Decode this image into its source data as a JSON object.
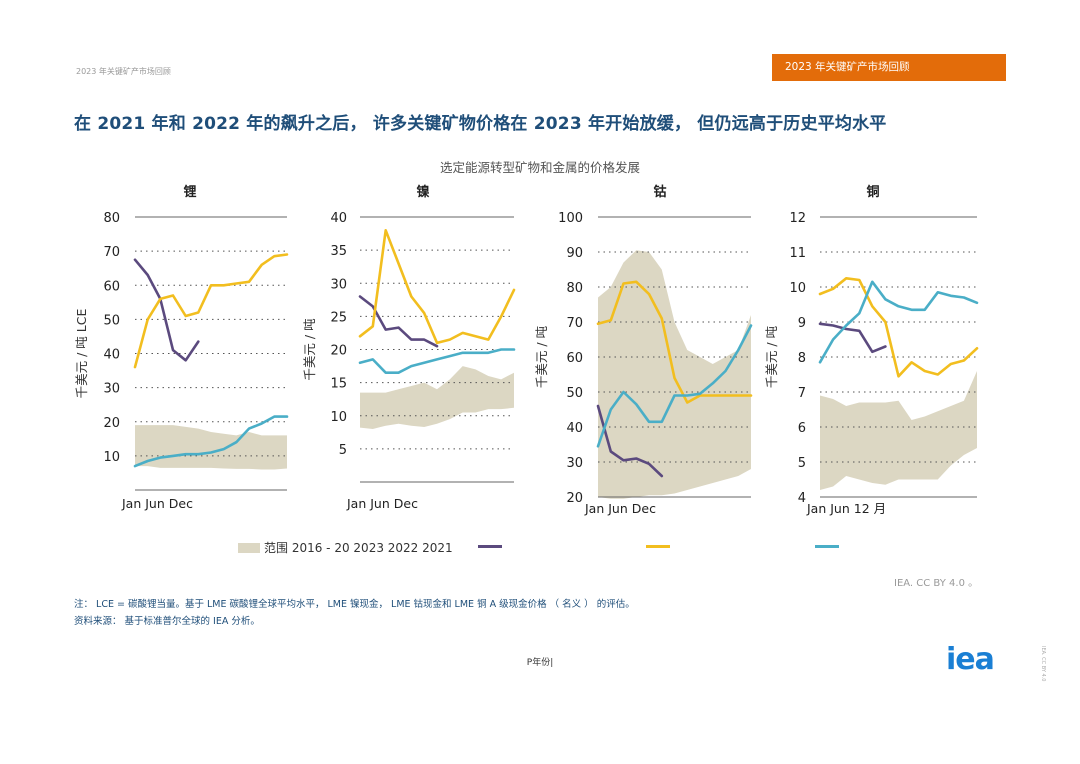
{
  "header": {
    "left_title": "2023 年关键矿产市场回顾",
    "badge": "2023 年关键矿产市场回顾"
  },
  "headline": "在 2021 年和 2022 年的飙升之后， 许多关键矿物价格在 2023 年开始放缓， 但仍远高于历史平均水平",
  "subtitle": "选定能源转型矿物和金属的价格发展",
  "colors": {
    "range": "#dcd7c3",
    "s2023": "#5b4a7e",
    "s2022": "#f2be1f",
    "s2021": "#4aaec7",
    "badge": "#e36c0a",
    "headline": "#1f4e79",
    "logo": "#1a7fd4"
  },
  "chart_data": [
    {
      "type": "line",
      "title": "锂",
      "ylabel": "千美元 / 吨 LCE",
      "ylim": [
        0,
        80
      ],
      "yticks": [
        10,
        20,
        30,
        40,
        50,
        60,
        70,
        80
      ],
      "xlabel": "Jan Jun      Dec",
      "months": 12,
      "range_band": {
        "name": "范围 2016 - 20",
        "upper": [
          19,
          19,
          19,
          19,
          18.5,
          18,
          17,
          16.5,
          16,
          17,
          16,
          16,
          16
        ],
        "lower": [
          7,
          7,
          6.5,
          6.5,
          6.5,
          6.5,
          6.5,
          6.3,
          6.2,
          6.2,
          6,
          6,
          6.3
        ]
      },
      "series": [
        {
          "name": "2023",
          "x": [
            0,
            1,
            2,
            3,
            4,
            5
          ],
          "values": [
            67.5,
            63,
            56,
            41,
            38,
            43.5
          ]
        },
        {
          "name": "2022",
          "x": [
            0,
            1,
            2,
            3,
            4,
            5,
            6,
            7,
            8,
            9,
            10,
            11,
            12
          ],
          "values": [
            36,
            50,
            56,
            57,
            51,
            52,
            60,
            60,
            60.5,
            61,
            66,
            68.5,
            69
          ]
        },
        {
          "name": "2021",
          "x": [
            0,
            1,
            2,
            3,
            4,
            5,
            6,
            7,
            8,
            9,
            10,
            11,
            12
          ],
          "values": [
            7,
            8.5,
            9.5,
            10,
            10.5,
            10.5,
            11,
            12,
            14,
            18,
            19.5,
            21.5,
            21.5
          ]
        }
      ]
    },
    {
      "type": "line",
      "title": "镍",
      "ylabel": "千美元 / 吨",
      "ylim": [
        0,
        40
      ],
      "yticks": [
        5,
        10,
        15,
        20,
        25,
        30,
        35,
        40
      ],
      "xlabel": "Jan Jun      Dec",
      "months": 12,
      "range_band": {
        "name": "范围 2016 - 20",
        "upper": [
          13.5,
          13.5,
          13.5,
          14,
          14.5,
          15,
          14,
          15.5,
          17.5,
          17,
          16,
          15.5,
          16.5
        ],
        "lower": [
          8.2,
          8,
          8.5,
          8.8,
          8.5,
          8.3,
          8.8,
          9.5,
          10.5,
          10.5,
          11,
          11,
          11.2
        ]
      },
      "series": [
        {
          "name": "2023",
          "x": [
            0,
            1,
            2,
            3,
            4,
            5,
            6
          ],
          "values": [
            28,
            26.5,
            23,
            23.3,
            21.5,
            21.5,
            20.5
          ]
        },
        {
          "name": "2022",
          "x": [
            0,
            1,
            2,
            3,
            4,
            5,
            6,
            7,
            8,
            9,
            10,
            11,
            12
          ],
          "values": [
            22,
            23.5,
            38,
            33,
            28,
            25.5,
            21,
            21.5,
            22.5,
            22,
            21.5,
            25,
            29
          ]
        },
        {
          "name": "2021",
          "x": [
            0,
            1,
            2,
            3,
            4,
            5,
            6,
            7,
            8,
            9,
            10,
            11,
            12
          ],
          "values": [
            18,
            18.5,
            16.5,
            16.5,
            17.5,
            18,
            18.5,
            19,
            19.5,
            19.5,
            19.5,
            20,
            20
          ]
        }
      ]
    },
    {
      "type": "line",
      "title": "钴",
      "ylabel": "千美元 / 吨",
      "ylim": [
        20,
        100
      ],
      "yticks": [
        20,
        30,
        40,
        50,
        60,
        70,
        80,
        90,
        100
      ],
      "xlabel": "Jan Jun      Dec",
      "months": 12,
      "range_band": {
        "name": "范围 2016 - 20",
        "upper": [
          77,
          80,
          87,
          90.5,
          90,
          85,
          70,
          62,
          60,
          58,
          60,
          62,
          72
        ],
        "lower": [
          20,
          19.5,
          19.5,
          20,
          20.5,
          20.5,
          21,
          22,
          23,
          24,
          25,
          26,
          28
        ]
      },
      "series": [
        {
          "name": "2023",
          "x": [
            0,
            1,
            2,
            3,
            4,
            5
          ],
          "values": [
            46,
            33,
            30.5,
            31,
            29.5,
            26
          ]
        },
        {
          "name": "2022",
          "x": [
            0,
            1,
            2,
            3,
            4,
            5,
            6,
            7,
            8,
            9,
            10,
            11,
            12
          ],
          "values": [
            69.5,
            70.5,
            81,
            81.5,
            78,
            71,
            54,
            47,
            49,
            49,
            49,
            49,
            49
          ]
        },
        {
          "name": "2021",
          "x": [
            0,
            1,
            2,
            3,
            4,
            5,
            6,
            7,
            8,
            9,
            10,
            11,
            12
          ],
          "values": [
            34.5,
            45,
            50,
            46.5,
            41.5,
            41.5,
            49,
            49,
            49.5,
            52.5,
            56,
            62,
            69
          ]
        }
      ]
    },
    {
      "type": "line",
      "title": "铜",
      "ylabel": "千美元 / 吨",
      "ylim": [
        4,
        12
      ],
      "yticks": [
        4,
        5,
        6,
        7,
        8,
        9,
        10,
        11,
        12
      ],
      "xlabel": "Jan Jun 12 月",
      "months": 12,
      "range_band": {
        "name": "范围 2016 - 20",
        "upper": [
          6.9,
          6.8,
          6.6,
          6.7,
          6.7,
          6.7,
          6.75,
          6.2,
          6.3,
          6.45,
          6.6,
          6.75,
          7.6
        ],
        "lower": [
          4.2,
          4.3,
          4.6,
          4.5,
          4.4,
          4.35,
          4.5,
          4.5,
          4.5,
          4.5,
          4.9,
          5.2,
          5.4
        ]
      },
      "series": [
        {
          "name": "2023",
          "x": [
            0,
            1,
            2,
            3,
            4,
            5
          ],
          "values": [
            8.95,
            8.9,
            8.8,
            8.75,
            8.15,
            8.3
          ]
        },
        {
          "name": "2022",
          "x": [
            0,
            1,
            2,
            3,
            4,
            5,
            6,
            7,
            8,
            9,
            10,
            11,
            12
          ],
          "values": [
            9.8,
            9.95,
            10.25,
            10.2,
            9.45,
            9.0,
            7.45,
            7.85,
            7.6,
            7.5,
            7.8,
            7.9,
            8.25
          ]
        },
        {
          "name": "2021",
          "x": [
            0,
            1,
            2,
            3,
            4,
            5,
            6,
            7,
            8,
            9,
            10,
            11,
            12
          ],
          "values": [
            7.85,
            8.5,
            8.9,
            9.25,
            10.15,
            9.65,
            9.45,
            9.35,
            9.35,
            9.85,
            9.75,
            9.7,
            9.55
          ]
        }
      ]
    }
  ],
  "legend": {
    "range_label": "范围 2016 - 20",
    "years_label": "2023 2022 2021"
  },
  "credit": "IEA. CC BY 4.0 。",
  "note": "注： LCE = 碳酸锂当量。基于 LME 碳酸锂全球平均水平， LME 镍现金， LME 钴现金和 LME 铜 A 级现金价格 （ 名义 ） 的评估。",
  "source": "资料来源： 基于标准普尔全球的 IEA 分析。",
  "page_number": "P年份|",
  "logo_text": "iea",
  "side_tag": "IEA. CC BY 4.0"
}
